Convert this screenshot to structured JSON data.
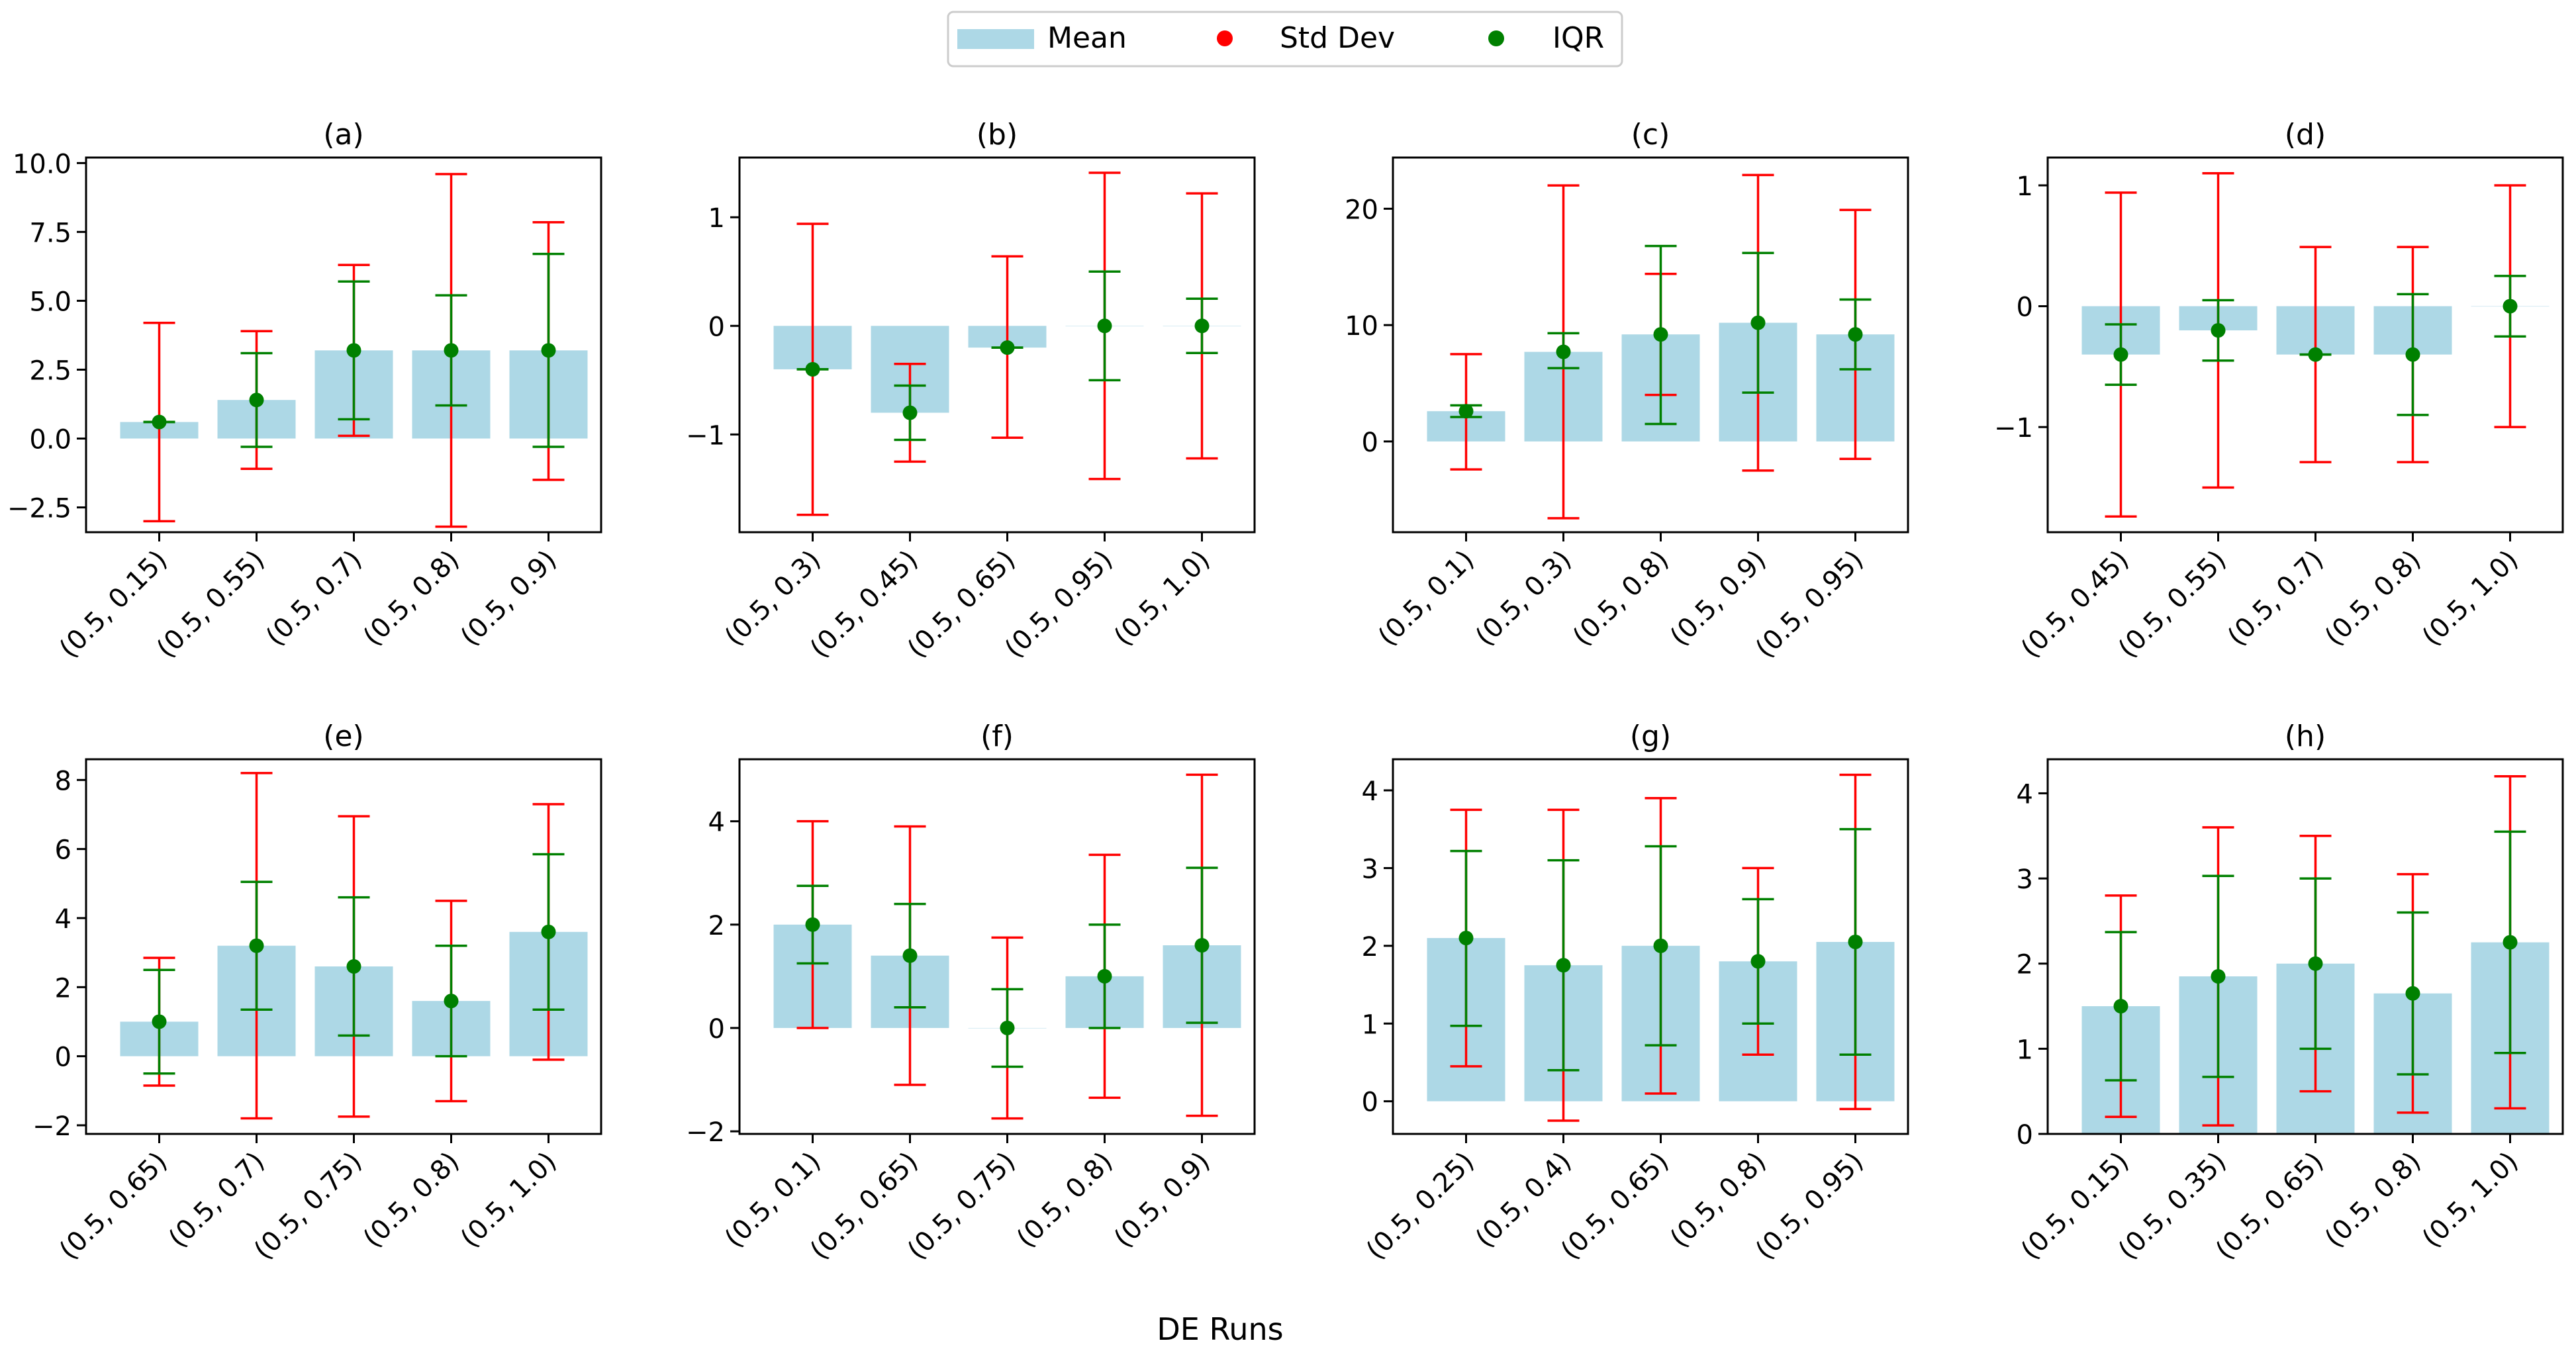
{
  "figure": {
    "xlabel": "DE Runs"
  },
  "legend": {
    "items": [
      {
        "label": "Mean",
        "kind": "bar"
      },
      {
        "label": "Std Dev",
        "kind": "marker-red"
      },
      {
        "label": "IQR",
        "kind": "marker-green"
      }
    ]
  },
  "colors": {
    "bar": "#add8e6",
    "std": "#ff0000",
    "iqr": "#008000",
    "axis": "#000000",
    "legend_border": "#cccccc"
  },
  "chart_data": [
    {
      "type": "bar",
      "title": "(a)",
      "categories": [
        "(0.5, 0.15)",
        "(0.5, 0.55)",
        "(0.5, 0.7)",
        "(0.5, 0.8)",
        "(0.5, 0.9)"
      ],
      "mean": [
        0.6,
        1.4,
        3.2,
        3.2,
        3.2
      ],
      "std_low": [
        -3.0,
        -1.1,
        0.1,
        -3.2,
        -1.5
      ],
      "std_high": [
        4.2,
        3.9,
        6.3,
        9.6,
        7.85
      ],
      "iqr_low": [
        0.6,
        -0.3,
        0.7,
        1.2,
        -0.3
      ],
      "iqr_high": [
        0.6,
        3.1,
        5.7,
        5.2,
        6.7
      ],
      "ylim": [
        -3.4,
        10.2
      ],
      "yticks": [
        -2.5,
        0.0,
        2.5,
        5.0,
        7.5,
        10.0
      ],
      "ytick_labels": [
        "−2.5",
        "0.0",
        "2.5",
        "5.0",
        "7.5",
        "10.0"
      ]
    },
    {
      "type": "bar",
      "title": "(b)",
      "categories": [
        "(0.5, 0.3)",
        "(0.5, 0.45)",
        "(0.5, 0.65)",
        "(0.5, 0.95)",
        "(0.5, 1.0)"
      ],
      "mean": [
        -0.4,
        -0.8,
        -0.2,
        0.0,
        0.0
      ],
      "std_low": [
        -1.74,
        -1.25,
        -1.03,
        -1.41,
        -1.22
      ],
      "std_high": [
        0.94,
        -0.35,
        0.64,
        1.41,
        1.22
      ],
      "iqr_low": [
        -0.4,
        -1.05,
        -0.2,
        -0.5,
        -0.25
      ],
      "iqr_high": [
        -0.4,
        -0.55,
        -0.2,
        0.5,
        0.25
      ],
      "ylim": [
        -1.9,
        1.55
      ],
      "yticks": [
        -1,
        0,
        1
      ],
      "ytick_labels": [
        "−1",
        "0",
        "1"
      ]
    },
    {
      "type": "bar",
      "title": "(c)",
      "categories": [
        "(0.5, 0.1)",
        "(0.5, 0.3)",
        "(0.5, 0.8)",
        "(0.5, 0.9)",
        "(0.5, 0.95)"
      ],
      "mean": [
        2.6,
        7.7,
        9.2,
        10.2,
        9.2
      ],
      "std_low": [
        -2.4,
        -6.6,
        4.0,
        -2.5,
        -1.5
      ],
      "std_high": [
        7.5,
        22.0,
        14.4,
        22.9,
        19.9
      ],
      "iqr_low": [
        2.1,
        6.3,
        1.5,
        4.2,
        6.2
      ],
      "iqr_high": [
        3.1,
        9.3,
        16.8,
        16.2,
        12.2
      ],
      "ylim": [
        -7.8,
        24.4
      ],
      "yticks": [
        0,
        10,
        20
      ],
      "ytick_labels": [
        "0",
        "10",
        "20"
      ]
    },
    {
      "type": "bar",
      "title": "(d)",
      "categories": [
        "(0.5, 0.45)",
        "(0.5, 0.55)",
        "(0.5, 0.7)",
        "(0.5, 0.8)",
        "(0.5, 1.0)"
      ],
      "mean": [
        -0.4,
        -0.2,
        -0.4,
        -0.4,
        0.0
      ],
      "std_low": [
        -1.74,
        -1.5,
        -1.29,
        -1.29,
        -1.0
      ],
      "std_high": [
        0.94,
        1.1,
        0.49,
        0.49,
        1.0
      ],
      "iqr_low": [
        -0.65,
        -0.45,
        -0.4,
        -0.9,
        -0.25
      ],
      "iqr_high": [
        -0.15,
        0.05,
        -0.4,
        0.1,
        0.25
      ],
      "ylim": [
        -1.87,
        1.23
      ],
      "yticks": [
        -1,
        0,
        1
      ],
      "ytick_labels": [
        "−1",
        "0",
        "1"
      ]
    },
    {
      "type": "bar",
      "title": "(e)",
      "categories": [
        "(0.5, 0.65)",
        "(0.5, 0.7)",
        "(0.5, 0.75)",
        "(0.5, 0.8)",
        "(0.5, 1.0)"
      ],
      "mean": [
        1.0,
        3.2,
        2.6,
        1.6,
        3.6
      ],
      "std_low": [
        -0.85,
        -1.8,
        -1.75,
        -1.3,
        -0.1
      ],
      "std_high": [
        2.85,
        8.2,
        6.95,
        4.5,
        7.3
      ],
      "iqr_low": [
        -0.5,
        1.35,
        0.6,
        0.0,
        1.35
      ],
      "iqr_high": [
        2.5,
        5.05,
        4.6,
        3.2,
        5.85
      ],
      "ylim": [
        -2.25,
        8.6
      ],
      "yticks": [
        -2,
        0,
        2,
        4,
        6,
        8
      ],
      "ytick_labels": [
        "−2",
        "0",
        "2",
        "4",
        "6",
        "8"
      ]
    },
    {
      "type": "bar",
      "title": "(f)",
      "categories": [
        "(0.5, 0.1)",
        "(0.5, 0.65)",
        "(0.5, 0.75)",
        "(0.5, 0.8)",
        "(0.5, 0.9)"
      ],
      "mean": [
        2.0,
        1.4,
        0.0,
        1.0,
        1.6
      ],
      "std_low": [
        0.0,
        -1.1,
        -1.75,
        -1.35,
        -1.7
      ],
      "std_high": [
        4.0,
        3.9,
        1.75,
        3.35,
        4.9
      ],
      "iqr_low": [
        1.25,
        0.4,
        -0.75,
        0.0,
        0.1
      ],
      "iqr_high": [
        2.75,
        2.4,
        0.75,
        2.0,
        3.1
      ],
      "ylim": [
        -2.05,
        5.2
      ],
      "yticks": [
        -2,
        0,
        2,
        4
      ],
      "ytick_labels": [
        "−2",
        "0",
        "2",
        "4"
      ]
    },
    {
      "type": "bar",
      "title": "(g)",
      "categories": [
        "(0.5, 0.25)",
        "(0.5, 0.4)",
        "(0.5, 0.65)",
        "(0.5, 0.8)",
        "(0.5, 0.95)"
      ],
      "mean": [
        2.1,
        1.75,
        2.0,
        1.8,
        2.05
      ],
      "std_low": [
        0.45,
        -0.25,
        0.1,
        0.6,
        -0.1
      ],
      "std_high": [
        3.75,
        3.75,
        3.9,
        3.0,
        4.2
      ],
      "iqr_low": [
        0.97,
        0.4,
        0.72,
        1.0,
        0.6
      ],
      "iqr_high": [
        3.22,
        3.1,
        3.28,
        2.6,
        3.5
      ],
      "ylim": [
        -0.42,
        4.4
      ],
      "yticks": [
        0,
        1,
        2,
        3,
        4
      ],
      "ytick_labels": [
        "0",
        "1",
        "2",
        "3",
        "4"
      ]
    },
    {
      "type": "bar",
      "title": "(h)",
      "categories": [
        "(0.5, 0.15)",
        "(0.5, 0.35)",
        "(0.5, 0.65)",
        "(0.5, 0.8)",
        "(0.5, 1.0)"
      ],
      "mean": [
        1.5,
        1.85,
        2.0,
        1.65,
        2.25
      ],
      "std_low": [
        0.2,
        0.1,
        0.5,
        0.25,
        0.3
      ],
      "std_high": [
        2.8,
        3.6,
        3.5,
        3.05,
        4.2
      ],
      "iqr_low": [
        0.63,
        0.67,
        1.0,
        0.7,
        0.95
      ],
      "iqr_high": [
        2.37,
        3.03,
        3.0,
        2.6,
        3.55
      ],
      "ylim": [
        0.0,
        4.4
      ],
      "yticks": [
        0,
        1,
        2,
        3,
        4
      ],
      "ytick_labels": [
        "0",
        "1",
        "2",
        "3",
        "4"
      ]
    }
  ]
}
